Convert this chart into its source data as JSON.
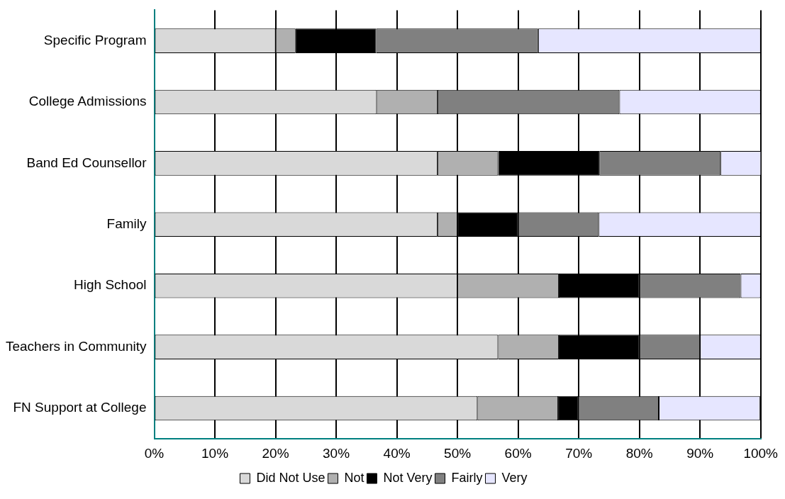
{
  "chart_data": {
    "type": "bar",
    "orientation": "horizontal",
    "stacked": true,
    "categories": [
      "Specific Program",
      "College Admissions",
      "Band Ed Counsellor",
      "Family",
      "High School",
      "Teachers in Community",
      "FN Support at College"
    ],
    "series": [
      {
        "name": "Did Not Use",
        "color": "#d9d9d9",
        "values": [
          20,
          36.7,
          46.7,
          46.7,
          50,
          56.7,
          53.3
        ]
      },
      {
        "name": "Not",
        "color": "#b0b0b0",
        "values": [
          3.3,
          10,
          10,
          3.3,
          16.7,
          10,
          13.3
        ]
      },
      {
        "name": "Not Very",
        "color": "#000000",
        "values": [
          13.3,
          0,
          16.7,
          10,
          13.3,
          13.3,
          3.3
        ]
      },
      {
        "name": "Fairly",
        "color": "#808080",
        "values": [
          26.7,
          30,
          20,
          13.3,
          16.7,
          10,
          13.3
        ]
      },
      {
        "name": "Very",
        "color": "#e6e6ff",
        "values": [
          36.7,
          23.3,
          6.7,
          26.7,
          3.3,
          10,
          16.7
        ]
      }
    ],
    "xlim": [
      0,
      100
    ],
    "xticks": [
      {
        "value": 0,
        "label": "0%"
      },
      {
        "value": 10,
        "label": "10%"
      },
      {
        "value": 20,
        "label": "20%"
      },
      {
        "value": 30,
        "label": "30%"
      },
      {
        "value": 40,
        "label": "40%"
      },
      {
        "value": 50,
        "label": "50%"
      },
      {
        "value": 60,
        "label": "60%"
      },
      {
        "value": 70,
        "label": "70%"
      },
      {
        "value": 80,
        "label": "80%"
      },
      {
        "value": 90,
        "label": "90%"
      },
      {
        "value": 100,
        "label": "100%"
      }
    ],
    "grid": "x",
    "legend": "bottom"
  }
}
